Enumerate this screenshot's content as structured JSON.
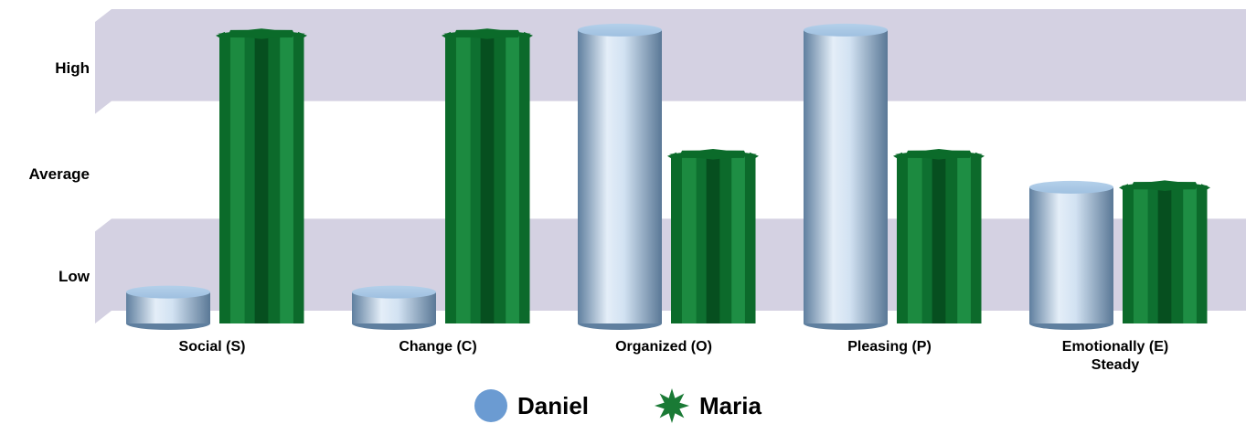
{
  "chart_data": {
    "type": "bar",
    "categories": [
      "Social (S)",
      "Change (C)",
      "Organized (O)",
      "Pleasing (P)",
      "Emotionally (E)\nSteady"
    ],
    "y_levels": [
      "Low",
      "Average",
      "High"
    ],
    "series": [
      {
        "name": "Daniel",
        "marker": "circle-cylinder",
        "color": "#6b9bd2",
        "values": [
          0.3,
          0.3,
          2.8,
          2.8,
          1.3
        ]
      },
      {
        "name": "Maria",
        "marker": "star-prism",
        "color": "#1a7a35",
        "values": [
          2.8,
          2.8,
          1.65,
          1.65,
          1.35
        ]
      }
    ],
    "ylim": [
      0,
      3
    ],
    "bands": [
      {
        "level": "Low",
        "color": "#d4d1e2"
      },
      {
        "level": "Average",
        "color": "#ffffff"
      },
      {
        "level": "High",
        "color": "#d4d1e2"
      }
    ],
    "legend": "bottom-center",
    "grid": false
  },
  "labels": {
    "y": {
      "high": "High",
      "average": "Average",
      "low": "Low"
    },
    "x": {
      "c0": "Social (S)",
      "c1": "Change (C)",
      "c2": "Organized (O)",
      "c3": "Pleasing (P)",
      "c4a": "Emotionally (E)",
      "c4b": "Steady"
    },
    "legend": {
      "daniel": "Daniel",
      "maria": "Maria"
    }
  }
}
